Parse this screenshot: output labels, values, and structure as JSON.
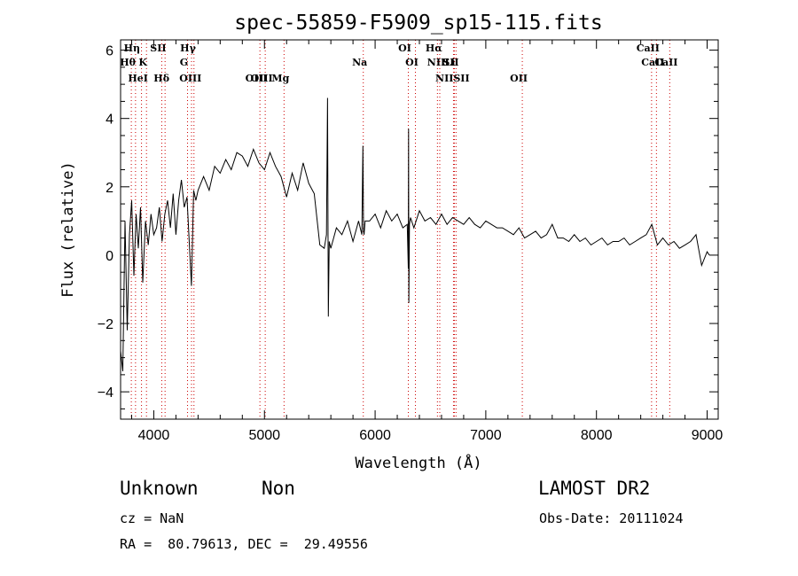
{
  "chart_data": {
    "type": "line",
    "title": "spec-55859-F5909_sp15-115.fits",
    "xlabel": "Wavelength (Å)",
    "ylabel": "Flux (relative)",
    "xlim": [
      3700,
      9100
    ],
    "ylim": [
      -4.8,
      6.3
    ],
    "xticks": [
      4000,
      5000,
      6000,
      7000,
      8000,
      9000
    ],
    "yticks": [
      -4,
      -2,
      0,
      2,
      4,
      6
    ],
    "grid": false,
    "series": [
      {
        "x": [
          3700,
          3720,
          3740,
          3760,
          3780,
          3800,
          3820,
          3840,
          3860,
          3880,
          3900,
          3925,
          3950,
          3975,
          4000,
          4025,
          4050,
          4075,
          4100,
          4125,
          4150,
          4175,
          4200,
          4225,
          4250,
          4275,
          4300,
          4320,
          4340,
          4360,
          4380,
          4400,
          4450,
          4500,
          4550,
          4600,
          4650,
          4700,
          4750,
          4800,
          4850,
          4900,
          4950,
          5000,
          5050,
          5100,
          5150,
          5200,
          5250,
          5300,
          5350,
          5400,
          5450,
          5500,
          5540,
          5560,
          5570,
          5577,
          5585,
          5600,
          5650,
          5700,
          5750,
          5800,
          5850,
          5880,
          5890,
          5895,
          5900,
          5910,
          5950,
          6000,
          6050,
          6100,
          6150,
          6200,
          6250,
          6290,
          6300,
          6302,
          6305,
          6310,
          6320,
          6350,
          6400,
          6450,
          6500,
          6550,
          6600,
          6650,
          6700,
          6750,
          6800,
          6850,
          6900,
          6950,
          7000,
          7050,
          7100,
          7150,
          7200,
          7250,
          7300,
          7350,
          7400,
          7450,
          7500,
          7550,
          7600,
          7650,
          7700,
          7750,
          7800,
          7850,
          7900,
          7950,
          8000,
          8050,
          8100,
          8150,
          8200,
          8250,
          8300,
          8350,
          8400,
          8450,
          8500,
          8550,
          8600,
          8650,
          8700,
          8750,
          8800,
          8850,
          8900,
          8950,
          9000,
          9020
        ],
        "y": [
          -2.8,
          -3.4,
          1.0,
          -2.2,
          0.6,
          1.6,
          -0.6,
          1.2,
          0.2,
          1.4,
          -0.8,
          1.0,
          0.3,
          1.2,
          0.6,
          0.8,
          1.4,
          0.4,
          1.2,
          1.6,
          0.8,
          1.8,
          0.6,
          1.6,
          2.2,
          1.4,
          1.7,
          0.4,
          -0.9,
          1.9,
          1.6,
          1.9,
          2.3,
          1.9,
          2.6,
          2.4,
          2.8,
          2.5,
          3.0,
          2.9,
          2.6,
          3.1,
          2.7,
          2.5,
          3.0,
          2.6,
          2.3,
          1.7,
          2.4,
          1.9,
          2.7,
          2.1,
          1.8,
          0.3,
          0.2,
          0.6,
          4.6,
          -1.8,
          0.4,
          0.2,
          0.8,
          0.6,
          1.0,
          0.4,
          1.0,
          0.6,
          3.2,
          0.7,
          0.6,
          1.0,
          1.0,
          1.2,
          0.8,
          1.3,
          1.0,
          1.2,
          0.8,
          0.9,
          -0.4,
          3.7,
          -1.4,
          0.9,
          1.1,
          0.8,
          1.3,
          1.0,
          1.1,
          0.9,
          1.2,
          0.9,
          1.1,
          1.0,
          0.9,
          1.1,
          0.9,
          0.8,
          1.0,
          0.9,
          0.8,
          0.8,
          0.7,
          0.6,
          0.8,
          0.5,
          0.6,
          0.7,
          0.5,
          0.6,
          0.9,
          0.5,
          0.5,
          0.4,
          0.6,
          0.4,
          0.5,
          0.3,
          0.4,
          0.5,
          0.3,
          0.4,
          0.4,
          0.5,
          0.3,
          0.4,
          0.5,
          0.6,
          0.9,
          0.3,
          0.5,
          0.3,
          0.4,
          0.2,
          0.3,
          0.4,
          0.6,
          -0.3,
          0.1,
          0.0
        ]
      }
    ],
    "lines": [
      {
        "labels": [
          "Hη"
        ],
        "wl": 3835
      },
      {
        "labels": [
          "Hθ"
        ],
        "wl": 3797
      },
      {
        "labels": [
          "HeI"
        ],
        "wl": 3889
      },
      {
        "labels": [
          "K"
        ],
        "wl": 3934
      },
      {
        "labels": [
          "SII"
        ],
        "wl": 4072
      },
      {
        "labels": [
          "Hδ"
        ],
        "wl": 4102
      },
      {
        "labels": [
          "Hγ"
        ],
        "wl": 4341
      },
      {
        "labels": [
          "G"
        ],
        "wl": 4305
      },
      {
        "labels": [
          "OIII"
        ],
        "wl": 4363
      },
      {
        "labels": [
          "OIII"
        ],
        "wl": 4959
      },
      {
        "labels": [
          "OIII"
        ],
        "wl": 5007
      },
      {
        "labels": [
          "Mg"
        ],
        "wl": 5177
      },
      {
        "labels": [
          "Na"
        ],
        "wl": 5893
      },
      {
        "labels": [
          "OI"
        ],
        "wl": 6300
      },
      {
        "labels": [
          "OI"
        ],
        "wl": 6364
      },
      {
        "labels": [
          "Hα"
        ],
        "wl": 6563
      },
      {
        "labels": [
          "NII"
        ],
        "wl": 6584
      },
      {
        "labels": [
          "SII"
        ],
        "wl": 6716
      },
      {
        "labels": [
          "Li"
        ],
        "wl": 6708
      },
      {
        "labels": [
          "NIISII"
        ],
        "wl": 6731
      },
      {
        "labels": [
          "OII"
        ],
        "wl": 7330
      },
      {
        "labels": [
          "CaII"
        ],
        "wl": 8498
      },
      {
        "labels": [
          "CaII"
        ],
        "wl": 8542
      },
      {
        "labels": [
          "CaII"
        ],
        "wl": 8662
      }
    ]
  },
  "info": {
    "class": "Unknown",
    "subclass": "Non",
    "survey": "LAMOST DR2",
    "cz": "cz = NaN",
    "obs_date": "Obs-Date: 20111024",
    "radec": "RA =  80.79613, DEC =  29.49556"
  },
  "colors": {
    "spectrum": "#000000",
    "line_marker": "#cc0000",
    "axis": "#000000"
  }
}
